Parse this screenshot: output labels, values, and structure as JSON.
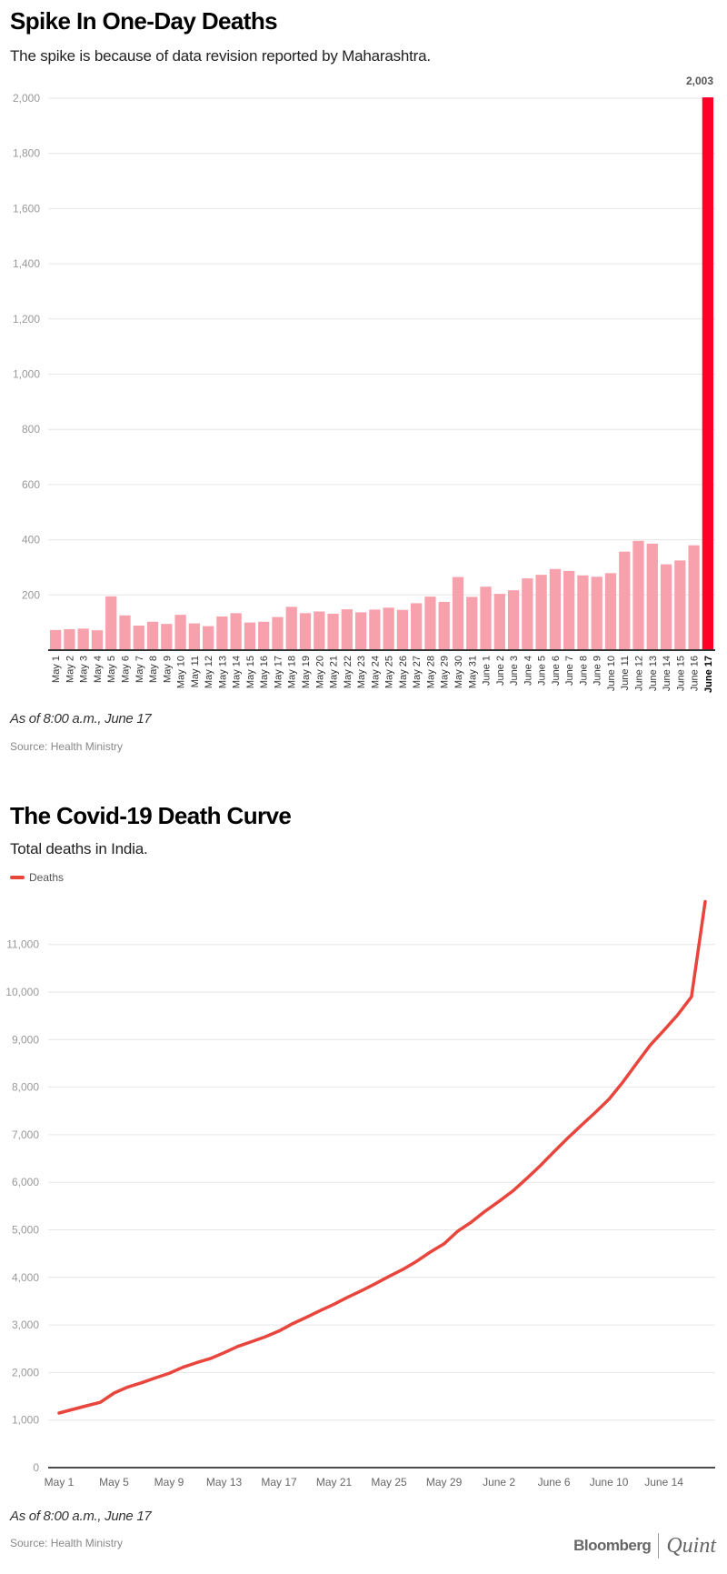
{
  "chart_data": [
    {
      "type": "bar",
      "title": "Spike In One-Day Deaths",
      "subtitle": "The spike is because of data revision reported by Maharashtra.",
      "categories": [
        "May 1",
        "May 2",
        "May 3",
        "May 4",
        "May 5",
        "May 6",
        "May 7",
        "May 8",
        "May 9",
        "May 10",
        "May 11",
        "May 12",
        "May 13",
        "May 14",
        "May 15",
        "May 16",
        "May 17",
        "May 18",
        "May 19",
        "May 20",
        "May 21",
        "May 22",
        "May 23",
        "May 24",
        "May 25",
        "May 26",
        "May 27",
        "May 28",
        "May 29",
        "May 30",
        "May 31",
        "June 1",
        "June 2",
        "June 3",
        "June 4",
        "June 5",
        "June 6",
        "June 7",
        "June 8",
        "June 9",
        "June 10",
        "June 11",
        "June 12",
        "June 13",
        "June 14",
        "June 15",
        "June 16",
        "June 17"
      ],
      "values": [
        73,
        76,
        78,
        72,
        195,
        126,
        89,
        103,
        95,
        128,
        97,
        87,
        122,
        134,
        100,
        103,
        120,
        157,
        134,
        140,
        132,
        148,
        137,
        147,
        154,
        146,
        170,
        194,
        175,
        265,
        193,
        230,
        204,
        217,
        260,
        273,
        294,
        287,
        271,
        266,
        279,
        357,
        396,
        386,
        311,
        325,
        380,
        2003
      ],
      "highlight_index": 47,
      "highlight_label": "2,003",
      "ylim": [
        0,
        2003
      ],
      "yticks": [
        200,
        400,
        600,
        800,
        1000,
        1200,
        1400,
        1600,
        1800,
        2000
      ],
      "ytick_labels": [
        "200",
        "400",
        "600",
        "800",
        "1,000",
        "1,200",
        "1,400",
        "1,600",
        "1,800",
        "2,000"
      ],
      "colors": {
        "bar": "#f7a1ad",
        "highlight": "#ff0027",
        "grid": "#e6e6e6"
      },
      "note": "As of 8:00 a.m., June 17",
      "source": "Source: Health Ministry",
      "grid": true
    },
    {
      "type": "line",
      "title": "The Covid-19 Death Curve",
      "subtitle": "Total deaths in India.",
      "legend": [
        "Deaths"
      ],
      "legend_position": "top-left",
      "x": [
        "May 1",
        "May 2",
        "May 3",
        "May 4",
        "May 5",
        "May 6",
        "May 7",
        "May 8",
        "May 9",
        "May 10",
        "May 11",
        "May 12",
        "May 13",
        "May 14",
        "May 15",
        "May 16",
        "May 17",
        "May 18",
        "May 19",
        "May 20",
        "May 21",
        "May 22",
        "May 23",
        "May 24",
        "May 25",
        "May 26",
        "May 27",
        "May 28",
        "May 29",
        "May 30",
        "May 31",
        "June 1",
        "June 2",
        "June 3",
        "June 4",
        "June 5",
        "June 6",
        "June 7",
        "June 8",
        "June 9",
        "June 10",
        "June 11",
        "June 12",
        "June 13",
        "June 14",
        "June 15",
        "June 16",
        "June 17"
      ],
      "series": [
        {
          "name": "Deaths",
          "values": [
            1147,
            1223,
            1301,
            1373,
            1568,
            1694,
            1783,
            1886,
            1981,
            2109,
            2206,
            2293,
            2415,
            2549,
            2649,
            2752,
            2872,
            3029,
            3163,
            3303,
            3435,
            3583,
            3720,
            3867,
            4021,
            4167,
            4337,
            4531,
            4706,
            4971,
            5164,
            5394,
            5598,
            5815,
            6075,
            6348,
            6642,
            6929,
            7200,
            7466,
            7745,
            8102,
            8498,
            8884,
            9195,
            9520,
            9900,
            11903
          ]
        }
      ],
      "xtick_labels": [
        "May 1",
        "May 5",
        "May 9",
        "May 13",
        "May 17",
        "May 21",
        "May 25",
        "May 29",
        "June 2",
        "June 6",
        "June 10",
        "June 14"
      ],
      "xtick_index": [
        0,
        4,
        8,
        12,
        16,
        20,
        24,
        28,
        32,
        36,
        40,
        44
      ],
      "yticks": [
        0,
        1000,
        2000,
        3000,
        4000,
        5000,
        6000,
        7000,
        8000,
        9000,
        10000,
        11000
      ],
      "ytick_labels": [
        "0",
        "1,000",
        "2,000",
        "3,000",
        "4,000",
        "5,000",
        "6,000",
        "7,000",
        "8,000",
        "9,000",
        "10,000",
        "11,000"
      ],
      "ylim": [
        0,
        11000
      ],
      "colors": {
        "line": "#e8453c",
        "grid": "#e6e6e6"
      },
      "note": "As of 8:00 a.m., June 17",
      "source": "Source: Health Ministry",
      "grid": true
    }
  ],
  "logo": {
    "left": "Bloomberg",
    "right": "Quint"
  }
}
